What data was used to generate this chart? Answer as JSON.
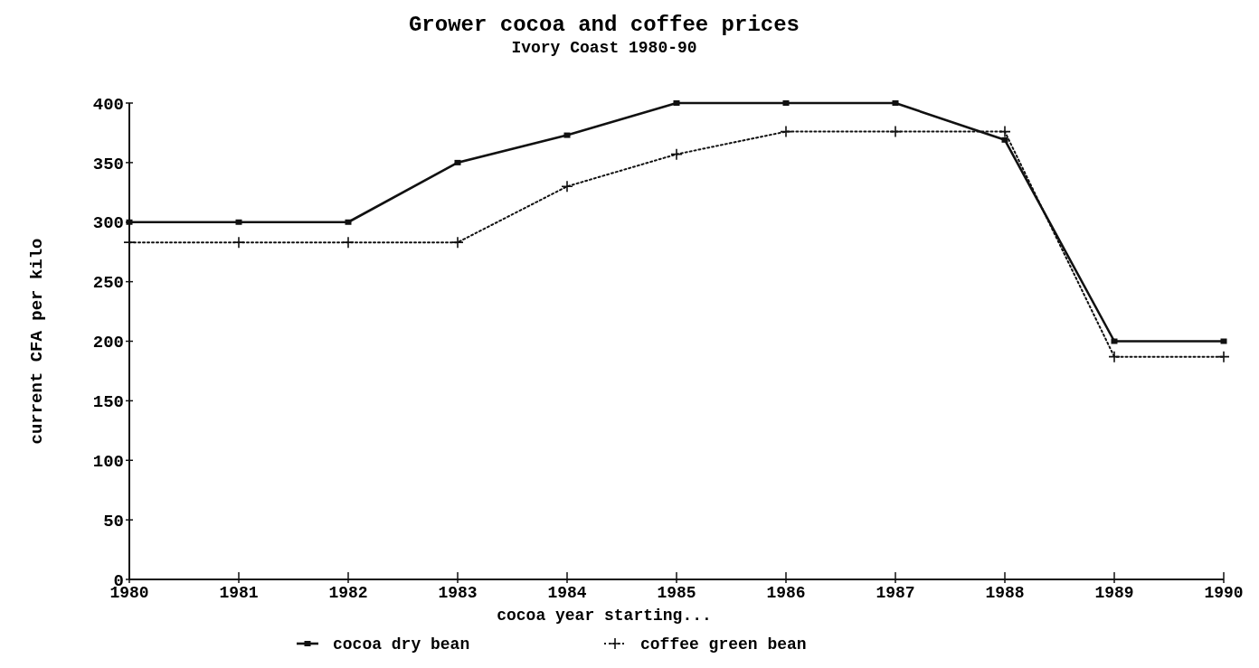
{
  "chart_data": {
    "type": "line",
    "title": "Grower cocoa and coffee prices",
    "subtitle": "Ivory Coast  1980-90",
    "xlabel": "cocoa year starting...",
    "ylabel": "current CFA per kilo",
    "x": [
      1980,
      1981,
      1982,
      1983,
      1984,
      1985,
      1986,
      1987,
      1988,
      1989,
      1990
    ],
    "xlim": [
      1980,
      1990
    ],
    "xticks": [
      1980,
      1981,
      1982,
      1983,
      1984,
      1985,
      1986,
      1987,
      1988,
      1989,
      1990
    ],
    "ylim": [
      0,
      400
    ],
    "yticks": [
      0,
      50,
      100,
      150,
      200,
      250,
      300,
      350,
      400
    ],
    "grid": false,
    "legend": "bottom",
    "series": [
      {
        "name": "cocoa dry bean",
        "color": "#111111",
        "marker": "square",
        "line_style": "solid",
        "values": [
          300,
          300,
          300,
          350,
          373,
          400,
          400,
          400,
          369,
          200,
          200
        ]
      },
      {
        "name": "coffee green bean",
        "color": "#111111",
        "marker": "cross",
        "line_style": "dotted",
        "values": [
          283,
          283,
          283,
          283,
          330,
          357,
          376,
          376,
          376,
          187,
          187
        ]
      }
    ]
  }
}
